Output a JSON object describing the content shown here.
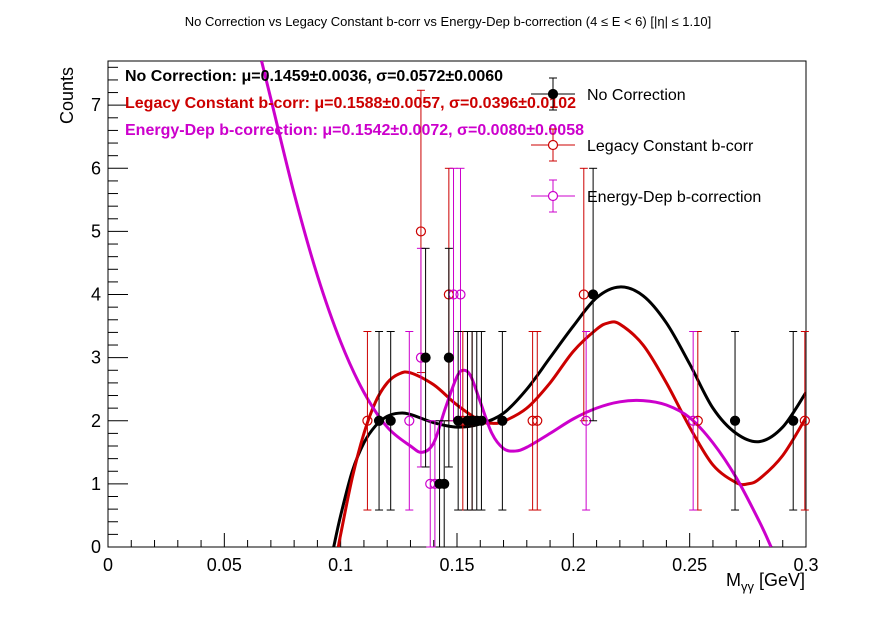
{
  "chart_data": {
    "type": "scatter",
    "title": "No Correction vs Legacy Constant b-corr vs Energy-Dep b-correction   (4 ≤ E < 6)   [|η| ≤ 1.10]",
    "xlabel_main": "M",
    "xlabel_sub": "γγ",
    "xlabel_unit": " [GeV]",
    "ylabel": "Counts",
    "xlim": [
      0,
      0.3
    ],
    "ylim": [
      0,
      7.7
    ],
    "x_ticks": [
      0,
      0.05,
      0.1,
      0.15,
      0.2,
      0.25,
      0.3
    ],
    "x_tick_labels": [
      "0",
      "0.05",
      "0.1",
      "0.15",
      "0.2",
      "0.25",
      "0.3"
    ],
    "y_ticks": [
      0,
      1,
      2,
      3,
      4,
      5,
      6,
      7
    ],
    "y_tick_labels": [
      "0",
      "1",
      "2",
      "3",
      "4",
      "5",
      "6",
      "7"
    ],
    "grid": false,
    "legend_position": "top-right",
    "series": [
      {
        "name": "No Correction",
        "color": "#000000",
        "marker": "filled-circle",
        "fit_label": "No Correction:",
        "fit_result": "μ=0.1459±0.0036, σ=0.0572±0.0060",
        "points": [
          {
            "x": 0.1165,
            "y": 2
          },
          {
            "x": 0.1215,
            "y": 2
          },
          {
            "x": 0.1365,
            "y": 3
          },
          {
            "x": 0.1425,
            "y": 1
          },
          {
            "x": 0.1445,
            "y": 1
          },
          {
            "x": 0.1465,
            "y": 3
          },
          {
            "x": 0.1505,
            "y": 2
          },
          {
            "x": 0.1545,
            "y": 2
          },
          {
            "x": 0.1565,
            "y": 2
          },
          {
            "x": 0.1585,
            "y": 2
          },
          {
            "x": 0.1605,
            "y": 2
          },
          {
            "x": 0.1695,
            "y": 2
          },
          {
            "x": 0.2085,
            "y": 4
          },
          {
            "x": 0.2695,
            "y": 2
          },
          {
            "x": 0.2945,
            "y": 2
          }
        ],
        "fit_curve": [
          [
            0.097,
            0
          ],
          [
            0.1,
            0.5
          ],
          [
            0.105,
            1.2
          ],
          [
            0.11,
            1.65
          ],
          [
            0.115,
            1.92
          ],
          [
            0.12,
            2.07
          ],
          [
            0.125,
            2.12
          ],
          [
            0.13,
            2.1
          ],
          [
            0.14,
            1.97
          ],
          [
            0.15,
            1.9
          ],
          [
            0.16,
            1.95
          ],
          [
            0.17,
            2.12
          ],
          [
            0.18,
            2.5
          ],
          [
            0.19,
            3.0
          ],
          [
            0.2,
            3.5
          ],
          [
            0.21,
            3.95
          ],
          [
            0.22,
            4.12
          ],
          [
            0.23,
            3.98
          ],
          [
            0.24,
            3.55
          ],
          [
            0.25,
            2.9
          ],
          [
            0.26,
            2.2
          ],
          [
            0.27,
            1.8
          ],
          [
            0.28,
            1.67
          ],
          [
            0.29,
            1.9
          ],
          [
            0.3,
            2.45
          ]
        ]
      },
      {
        "name": "Legacy Constant b-corr",
        "color": "#cc0000",
        "marker": "open-circle",
        "fit_label": "Legacy Constant b-corr:",
        "fit_result": "μ=0.1588±0.0057, σ=0.0396±0.0102",
        "points": [
          {
            "x": 0.1115,
            "y": 2
          },
          {
            "x": 0.1345,
            "y": 5
          },
          {
            "x": 0.1465,
            "y": 4
          },
          {
            "x": 0.1525,
            "y": 2
          },
          {
            "x": 0.1545,
            "y": 2
          },
          {
            "x": 0.1565,
            "y": 2
          },
          {
            "x": 0.1825,
            "y": 2
          },
          {
            "x": 0.1845,
            "y": 2
          },
          {
            "x": 0.2045,
            "y": 4
          },
          {
            "x": 0.2535,
            "y": 2
          },
          {
            "x": 0.2995,
            "y": 2
          }
        ],
        "fit_curve": [
          [
            0.099,
            0
          ],
          [
            0.1,
            0.2
          ],
          [
            0.105,
            1.1
          ],
          [
            0.11,
            1.8
          ],
          [
            0.115,
            2.3
          ],
          [
            0.12,
            2.6
          ],
          [
            0.125,
            2.74
          ],
          [
            0.13,
            2.76
          ],
          [
            0.14,
            2.57
          ],
          [
            0.15,
            2.25
          ],
          [
            0.16,
            2.0
          ],
          [
            0.165,
            1.96
          ],
          [
            0.17,
            1.99
          ],
          [
            0.18,
            2.2
          ],
          [
            0.19,
            2.6
          ],
          [
            0.2,
            3.1
          ],
          [
            0.21,
            3.45
          ],
          [
            0.215,
            3.55
          ],
          [
            0.22,
            3.53
          ],
          [
            0.23,
            3.2
          ],
          [
            0.24,
            2.6
          ],
          [
            0.25,
            1.9
          ],
          [
            0.26,
            1.3
          ],
          [
            0.27,
            1.02
          ],
          [
            0.275,
            1.0
          ],
          [
            0.28,
            1.08
          ],
          [
            0.29,
            1.45
          ],
          [
            0.3,
            2.05
          ]
        ]
      },
      {
        "name": "Energy-Dep b-correction",
        "color": "#cc00cc",
        "marker": "open-circle",
        "fit_label": "Energy-Dep b-correction:",
        "fit_result": "μ=0.1542±0.0072, σ=0.0080±0.0058",
        "points": [
          {
            "x": 0.1295,
            "y": 2
          },
          {
            "x": 0.1345,
            "y": 3
          },
          {
            "x": 0.1385,
            "y": 1
          },
          {
            "x": 0.1405,
            "y": 1
          },
          {
            "x": 0.1485,
            "y": 4
          },
          {
            "x": 0.1515,
            "y": 4
          },
          {
            "x": 0.2055,
            "y": 2
          },
          {
            "x": 0.2515,
            "y": 2
          }
        ],
        "fit_curve": [
          [
            0.066,
            7.7
          ],
          [
            0.07,
            7.1
          ],
          [
            0.08,
            5.6
          ],
          [
            0.09,
            4.3
          ],
          [
            0.1,
            3.25
          ],
          [
            0.11,
            2.45
          ],
          [
            0.12,
            1.9
          ],
          [
            0.13,
            1.6
          ],
          [
            0.135,
            1.5
          ],
          [
            0.14,
            1.65
          ],
          [
            0.145,
            2.2
          ],
          [
            0.15,
            2.7
          ],
          [
            0.153,
            2.8
          ],
          [
            0.156,
            2.7
          ],
          [
            0.16,
            2.3
          ],
          [
            0.165,
            1.8
          ],
          [
            0.17,
            1.56
          ],
          [
            0.175,
            1.52
          ],
          [
            0.18,
            1.58
          ],
          [
            0.19,
            1.8
          ],
          [
            0.2,
            2.03
          ],
          [
            0.21,
            2.2
          ],
          [
            0.22,
            2.3
          ],
          [
            0.23,
            2.32
          ],
          [
            0.24,
            2.25
          ],
          [
            0.25,
            2.05
          ],
          [
            0.26,
            1.65
          ],
          [
            0.27,
            1.1
          ],
          [
            0.28,
            0.4
          ],
          [
            0.285,
            0
          ]
        ]
      }
    ]
  }
}
